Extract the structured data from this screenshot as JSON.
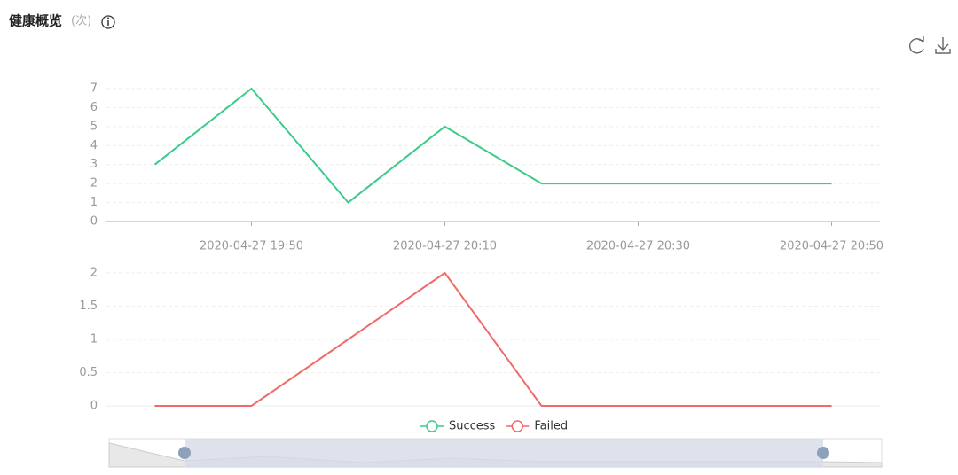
{
  "header": {
    "title": "健康概览",
    "unit": "(次)"
  },
  "chart_data": [
    {
      "type": "line",
      "categories": [
        null,
        "2020-04-27 19:50",
        null,
        "2020-04-27 20:10",
        null,
        "2020-04-27 20:30",
        null,
        "2020-04-27 20:50"
      ],
      "series": [
        {
          "name": "Success",
          "color": "#3ccb8a",
          "values": [
            3,
            7,
            1,
            5,
            2,
            2,
            2,
            2
          ]
        }
      ],
      "ylim": [
        0,
        7
      ],
      "yticks": [
        0,
        1,
        2,
        3,
        4,
        5,
        6,
        7
      ],
      "grid": true
    },
    {
      "type": "line",
      "categories": [
        null,
        null,
        null,
        null,
        null,
        null,
        null,
        null
      ],
      "series": [
        {
          "name": "Failed",
          "color": "#f06a6a",
          "values": [
            0,
            0,
            1,
            2,
            0,
            0,
            0,
            0
          ]
        }
      ],
      "ylim": [
        0,
        2
      ],
      "yticks": [
        0,
        0.5,
        1,
        1.5,
        2
      ],
      "grid": true
    }
  ]
}
